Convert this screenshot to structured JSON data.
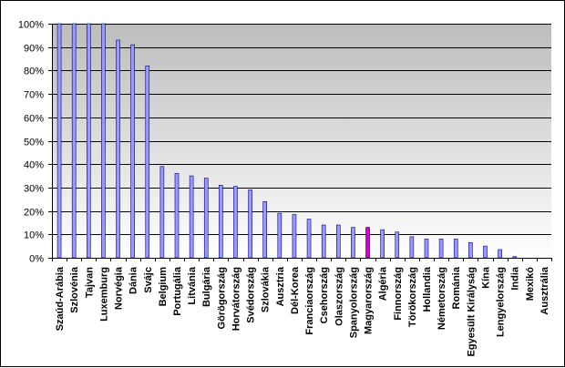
{
  "chart_data": {
    "type": "bar",
    "title": "",
    "xlabel": "",
    "ylabel": "",
    "ylim": [
      0,
      100
    ],
    "ytick_step": 10,
    "ytick_suffix": "%",
    "grid": true,
    "legend": "none",
    "colors": {
      "bar": "#9999ff",
      "highlight": "#cc00cc",
      "bar_edge": "#000080",
      "plot_top": "#bcbcbc",
      "plot_bottom": "#ffffff",
      "grid": "#000000"
    },
    "highlight_category": "Magyarország",
    "categories": [
      "Szaúd-Arábia",
      "Szlovénia",
      "Tajvan",
      "Luxemburg",
      "Norvégia",
      "Dánia",
      "Svájc",
      "Belgium",
      "Portugália",
      "Litvánia",
      "Bulgária",
      "Görögország",
      "Horvátország",
      "Svédország",
      "Szlovákia",
      "Ausztria",
      "Dél-Korea",
      "Franciaország",
      "Csehország",
      "Olaszország",
      "Spanyolország",
      "Magyarország",
      "Algéria",
      "Finnország",
      "Törökország",
      "Hollandia",
      "Németország",
      "Románia",
      "Egyesült Királyság",
      "Kína",
      "Lengyelország",
      "India",
      "Mexikó",
      "Ausztrália"
    ],
    "values": [
      100,
      100,
      100,
      100,
      93,
      91,
      82,
      39,
      36,
      35,
      34,
      31,
      30.5,
      29,
      24,
      19,
      18.5,
      16.5,
      14,
      14,
      13,
      13,
      12,
      11,
      9,
      8,
      8,
      8,
      6.5,
      5,
      3.5,
      0.5,
      0,
      0
    ]
  }
}
